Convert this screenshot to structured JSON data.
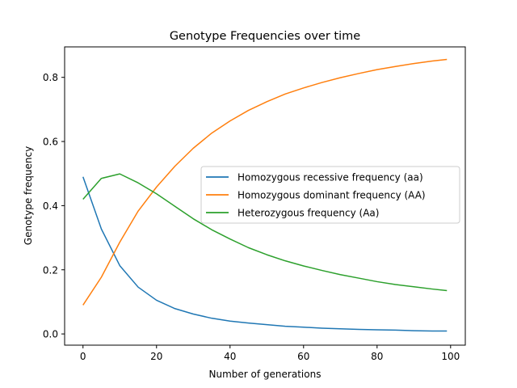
{
  "chart_data": {
    "type": "line",
    "title": "Genotype Frequencies over time",
    "xlabel": "Number of generations",
    "ylabel": "Genotype frequency",
    "xlim": [
      -5,
      104
    ],
    "ylim": [
      -0.035,
      0.895
    ],
    "x_ticks": [
      0,
      20,
      40,
      60,
      80,
      100
    ],
    "x_tick_labels": [
      "0",
      "20",
      "40",
      "60",
      "80",
      "100"
    ],
    "y_ticks": [
      0.0,
      0.2,
      0.4,
      0.6,
      0.8
    ],
    "y_tick_labels": [
      "0.0",
      "0.2",
      "0.4",
      "0.6",
      "0.8"
    ],
    "grid": false,
    "legend_position": "center-right",
    "x": [
      0,
      5,
      10,
      15,
      20,
      25,
      30,
      35,
      40,
      45,
      50,
      55,
      60,
      65,
      70,
      75,
      80,
      85,
      90,
      95,
      99
    ],
    "series": [
      {
        "name": "Homozygous recessive frequency (aa)",
        "color": "#1f77b4",
        "values": [
          0.49,
          0.327,
          0.213,
          0.146,
          0.105,
          0.079,
          0.062,
          0.049,
          0.04,
          0.034,
          0.029,
          0.024,
          0.021,
          0.018,
          0.016,
          0.014,
          0.013,
          0.012,
          0.01,
          0.009,
          0.009
        ]
      },
      {
        "name": "Homozygous dominant frequency (AA)",
        "color": "#ff7f0e",
        "values": [
          0.09,
          0.177,
          0.286,
          0.383,
          0.458,
          0.523,
          0.579,
          0.626,
          0.664,
          0.697,
          0.724,
          0.748,
          0.767,
          0.784,
          0.799,
          0.812,
          0.824,
          0.834,
          0.843,
          0.851,
          0.856
        ]
      },
      {
        "name": "Heterozygous frequency (Aa)",
        "color": "#2ca02c",
        "values": [
          0.42,
          0.485,
          0.499,
          0.471,
          0.437,
          0.398,
          0.359,
          0.325,
          0.296,
          0.269,
          0.247,
          0.228,
          0.212,
          0.198,
          0.185,
          0.174,
          0.163,
          0.154,
          0.147,
          0.14,
          0.135
        ]
      }
    ]
  }
}
